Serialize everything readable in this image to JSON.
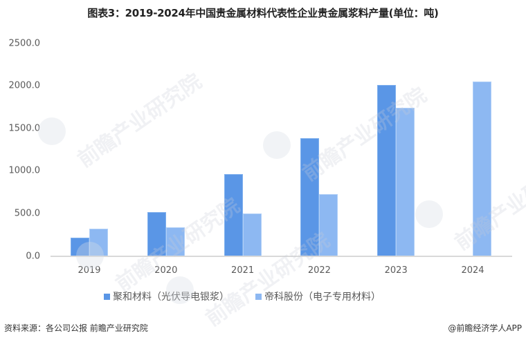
{
  "chart_data": {
    "type": "bar",
    "title": "图表3：2019-2024年中国贵金属材料代表性企业贵金属浆料产量(单位：吨)",
    "xlabel": "",
    "ylabel": "",
    "categories": [
      "2019",
      "2020",
      "2021",
      "2022",
      "2023",
      "2024"
    ],
    "series": [
      {
        "name": "聚和材料（光伏导电银浆）",
        "color": "#5A96E6",
        "values": [
          212,
          516,
          961,
          1385,
          2008,
          null
        ]
      },
      {
        "name": "帝科股份（电子专用材料）",
        "color": "#8DB8F2",
        "values": [
          317,
          336,
          503,
          724,
          1738,
          2053
        ]
      }
    ],
    "ylim": [
      0,
      2500
    ],
    "yticks": [
      "0.0",
      "500.0",
      "1000.0",
      "1500.0",
      "2000.0",
      "2500.0"
    ],
    "grid": false,
    "legend_position": "bottom"
  },
  "footer": {
    "source": "资料来源：各公司公报 前瞻产业研究院",
    "credit": "@前瞻经济学人APP"
  },
  "watermark": {
    "text": "前瞻产业研究院"
  }
}
